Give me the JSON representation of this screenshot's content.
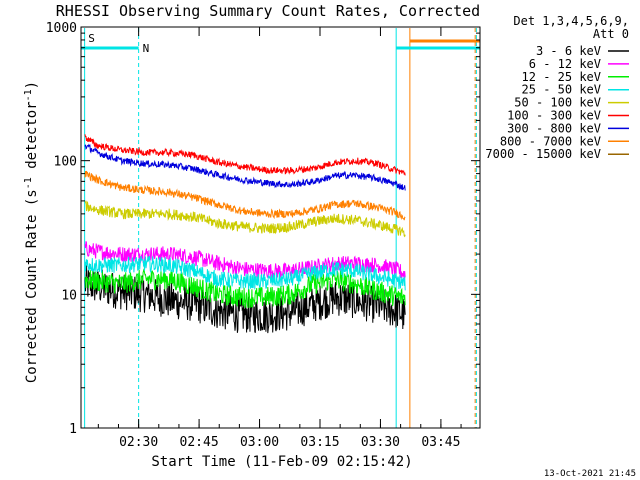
{
  "chart_data": {
    "type": "line",
    "title": "RHESSI Observing Summary Count Rates, Corrected",
    "xlabel": "Start Time (11-Feb-09 02:15:42)",
    "ylabel_main": "Corrected Count Rate (s",
    "ylabel_sup1": "-1",
    "ylabel_mid": " detector",
    "ylabel_sup2": "-1",
    "ylabel_end": ")",
    "x_unit": "minutes after 02:15:42",
    "xlim": [
      0,
      99
    ],
    "ylim": [
      1,
      1000
    ],
    "yscale": "log",
    "x_ticks": [
      {
        "x": 14.3,
        "label": "02:30"
      },
      {
        "x": 29.3,
        "label": "02:45"
      },
      {
        "x": 44.3,
        "label": "03:00"
      },
      {
        "x": 59.3,
        "label": "03:15"
      },
      {
        "x": 74.3,
        "label": "03:30"
      },
      {
        "x": 89.3,
        "label": "03:45"
      }
    ],
    "y_ticks": [
      {
        "y": 1,
        "label": "1"
      },
      {
        "y": 10,
        "label": "10"
      },
      {
        "y": 100,
        "label": "100"
      },
      {
        "y": 1000,
        "label": "1000"
      }
    ],
    "legend": {
      "header1": "Det 1,3,4,5,6,9,",
      "header2": "Att 0",
      "placement": "right"
    },
    "series": [
      {
        "name": "3 - 6 keV",
        "color": "#000000",
        "noise": 0.14,
        "points": [
          [
            1,
            12
          ],
          [
            4,
            11.5
          ],
          [
            10,
            10.5
          ],
          [
            16,
            10
          ],
          [
            22,
            9
          ],
          [
            28,
            8.5
          ],
          [
            34,
            7.5
          ],
          [
            40,
            7
          ],
          [
            46,
            7
          ],
          [
            52,
            7.3
          ],
          [
            58,
            8.5
          ],
          [
            63,
            9.5
          ],
          [
            68,
            9
          ],
          [
            74,
            8.2
          ],
          [
            79,
            7.4
          ],
          [
            80.5,
            6.8
          ]
        ]
      },
      {
        "name": "6 - 12 keV",
        "color": "#ff00ff",
        "noise": 0.06,
        "points": [
          [
            1,
            22
          ],
          [
            4,
            21
          ],
          [
            10,
            20
          ],
          [
            16,
            20
          ],
          [
            22,
            20
          ],
          [
            28,
            19
          ],
          [
            34,
            17
          ],
          [
            40,
            15.5
          ],
          [
            46,
            15
          ],
          [
            52,
            15
          ],
          [
            58,
            16
          ],
          [
            63,
            17
          ],
          [
            68,
            17
          ],
          [
            74,
            16.5
          ],
          [
            79,
            15
          ],
          [
            80.5,
            14
          ]
        ]
      },
      {
        "name": "12 - 25 keV",
        "color": "#00ee00",
        "noise": 0.08,
        "points": [
          [
            1,
            13
          ],
          [
            4,
            12.5
          ],
          [
            10,
            12
          ],
          [
            16,
            13
          ],
          [
            22,
            13
          ],
          [
            28,
            11.5
          ],
          [
            34,
            10
          ],
          [
            40,
            9.5
          ],
          [
            46,
            9.5
          ],
          [
            52,
            10
          ],
          [
            58,
            12
          ],
          [
            63,
            13
          ],
          [
            68,
            12
          ],
          [
            74,
            10.5
          ],
          [
            79,
            9.5
          ],
          [
            80.5,
            9.5
          ]
        ]
      },
      {
        "name": "25 - 50 keV",
        "color": "#00e5e5",
        "noise": 0.06,
        "points": [
          [
            1,
            17
          ],
          [
            4,
            16.5
          ],
          [
            10,
            16.5
          ],
          [
            16,
            17
          ],
          [
            22,
            16.5
          ],
          [
            28,
            15
          ],
          [
            34,
            13
          ],
          [
            40,
            12.5
          ],
          [
            46,
            12.5
          ],
          [
            52,
            13
          ],
          [
            58,
            14.5
          ],
          [
            63,
            15.5
          ],
          [
            68,
            15
          ],
          [
            74,
            13.5
          ],
          [
            79,
            12.5
          ],
          [
            80.5,
            12
          ]
        ]
      },
      {
        "name": "50 - 100 keV",
        "color": "#cccc00",
        "noise": 0.04,
        "points": [
          [
            1,
            46
          ],
          [
            4,
            43
          ],
          [
            10,
            40
          ],
          [
            16,
            40
          ],
          [
            22,
            40
          ],
          [
            28,
            38
          ],
          [
            34,
            34
          ],
          [
            40,
            32
          ],
          [
            46,
            31
          ],
          [
            52,
            32
          ],
          [
            58,
            35
          ],
          [
            63,
            37
          ],
          [
            68,
            36
          ],
          [
            74,
            33
          ],
          [
            79,
            30
          ],
          [
            80.5,
            29
          ]
        ]
      },
      {
        "name": "100 - 300 keV",
        "color": "#ff0000",
        "noise": 0.025,
        "points": [
          [
            1,
            150
          ],
          [
            4,
            130
          ],
          [
            10,
            120
          ],
          [
            16,
            115
          ],
          [
            22,
            115
          ],
          [
            28,
            110
          ],
          [
            34,
            97
          ],
          [
            40,
            90
          ],
          [
            46,
            85
          ],
          [
            52,
            84
          ],
          [
            58,
            88
          ],
          [
            63,
            97
          ],
          [
            68,
            100
          ],
          [
            73,
            96
          ],
          [
            78,
            85
          ],
          [
            80.5,
            80
          ]
        ]
      },
      {
        "name": "300 - 800 keV",
        "color": "#0000dd",
        "noise": 0.025,
        "points": [
          [
            1,
            130
          ],
          [
            4,
            115
          ],
          [
            10,
            100
          ],
          [
            16,
            95
          ],
          [
            22,
            93
          ],
          [
            28,
            87
          ],
          [
            34,
            78
          ],
          [
            40,
            72
          ],
          [
            46,
            68
          ],
          [
            52,
            66
          ],
          [
            58,
            70
          ],
          [
            63,
            77
          ],
          [
            68,
            78
          ],
          [
            73,
            74
          ],
          [
            78,
            67
          ],
          [
            80.5,
            62
          ]
        ]
      },
      {
        "name": "800 - 7000 keV",
        "color": "#ff8000",
        "noise": 0.03,
        "points": [
          [
            1,
            80
          ],
          [
            4,
            72
          ],
          [
            10,
            63
          ],
          [
            16,
            60
          ],
          [
            22,
            58
          ],
          [
            28,
            53
          ],
          [
            34,
            47
          ],
          [
            40,
            42
          ],
          [
            46,
            40
          ],
          [
            52,
            40
          ],
          [
            58,
            43
          ],
          [
            63,
            47
          ],
          [
            68,
            48
          ],
          [
            73,
            45
          ],
          [
            78,
            41
          ],
          [
            80.5,
            38
          ]
        ]
      },
      {
        "name": "7000 - 15000 keV",
        "color": "#996600",
        "noise": 0.0,
        "points": []
      }
    ],
    "state_bars": [
      {
        "label": "S",
        "color": "#ff8000",
        "x": [
          0.8,
          0.8
        ],
        "level": "top"
      },
      {
        "label": "N",
        "color": "#00e5e5",
        "x": [
          0.0,
          14.3
        ],
        "level": "upper"
      },
      {
        "label": "",
        "color": "#00e5e5",
        "x": [
          78.2,
          99
        ],
        "level": "upper"
      },
      {
        "label": "",
        "color": "#ff8000",
        "x": [
          81.6,
          99
        ],
        "level": "top"
      }
    ],
    "markers": [
      {
        "color": "#00e5e5",
        "x": 0.9,
        "style": "solid"
      },
      {
        "color": "#00e5e5",
        "x": 14.3,
        "style": "dashed"
      },
      {
        "color": "#00e5e5",
        "x": 78.2,
        "style": "solid"
      },
      {
        "color": "#ff8000",
        "x": 81.6,
        "style": "solid"
      },
      {
        "color": "#ff8000",
        "x": 97.8,
        "style": "dashed"
      },
      {
        "color": "#00e5e5",
        "x": 98.1,
        "style": "dashed"
      }
    ],
    "footer_timestamp": "13-Oct-2021 21:45"
  }
}
